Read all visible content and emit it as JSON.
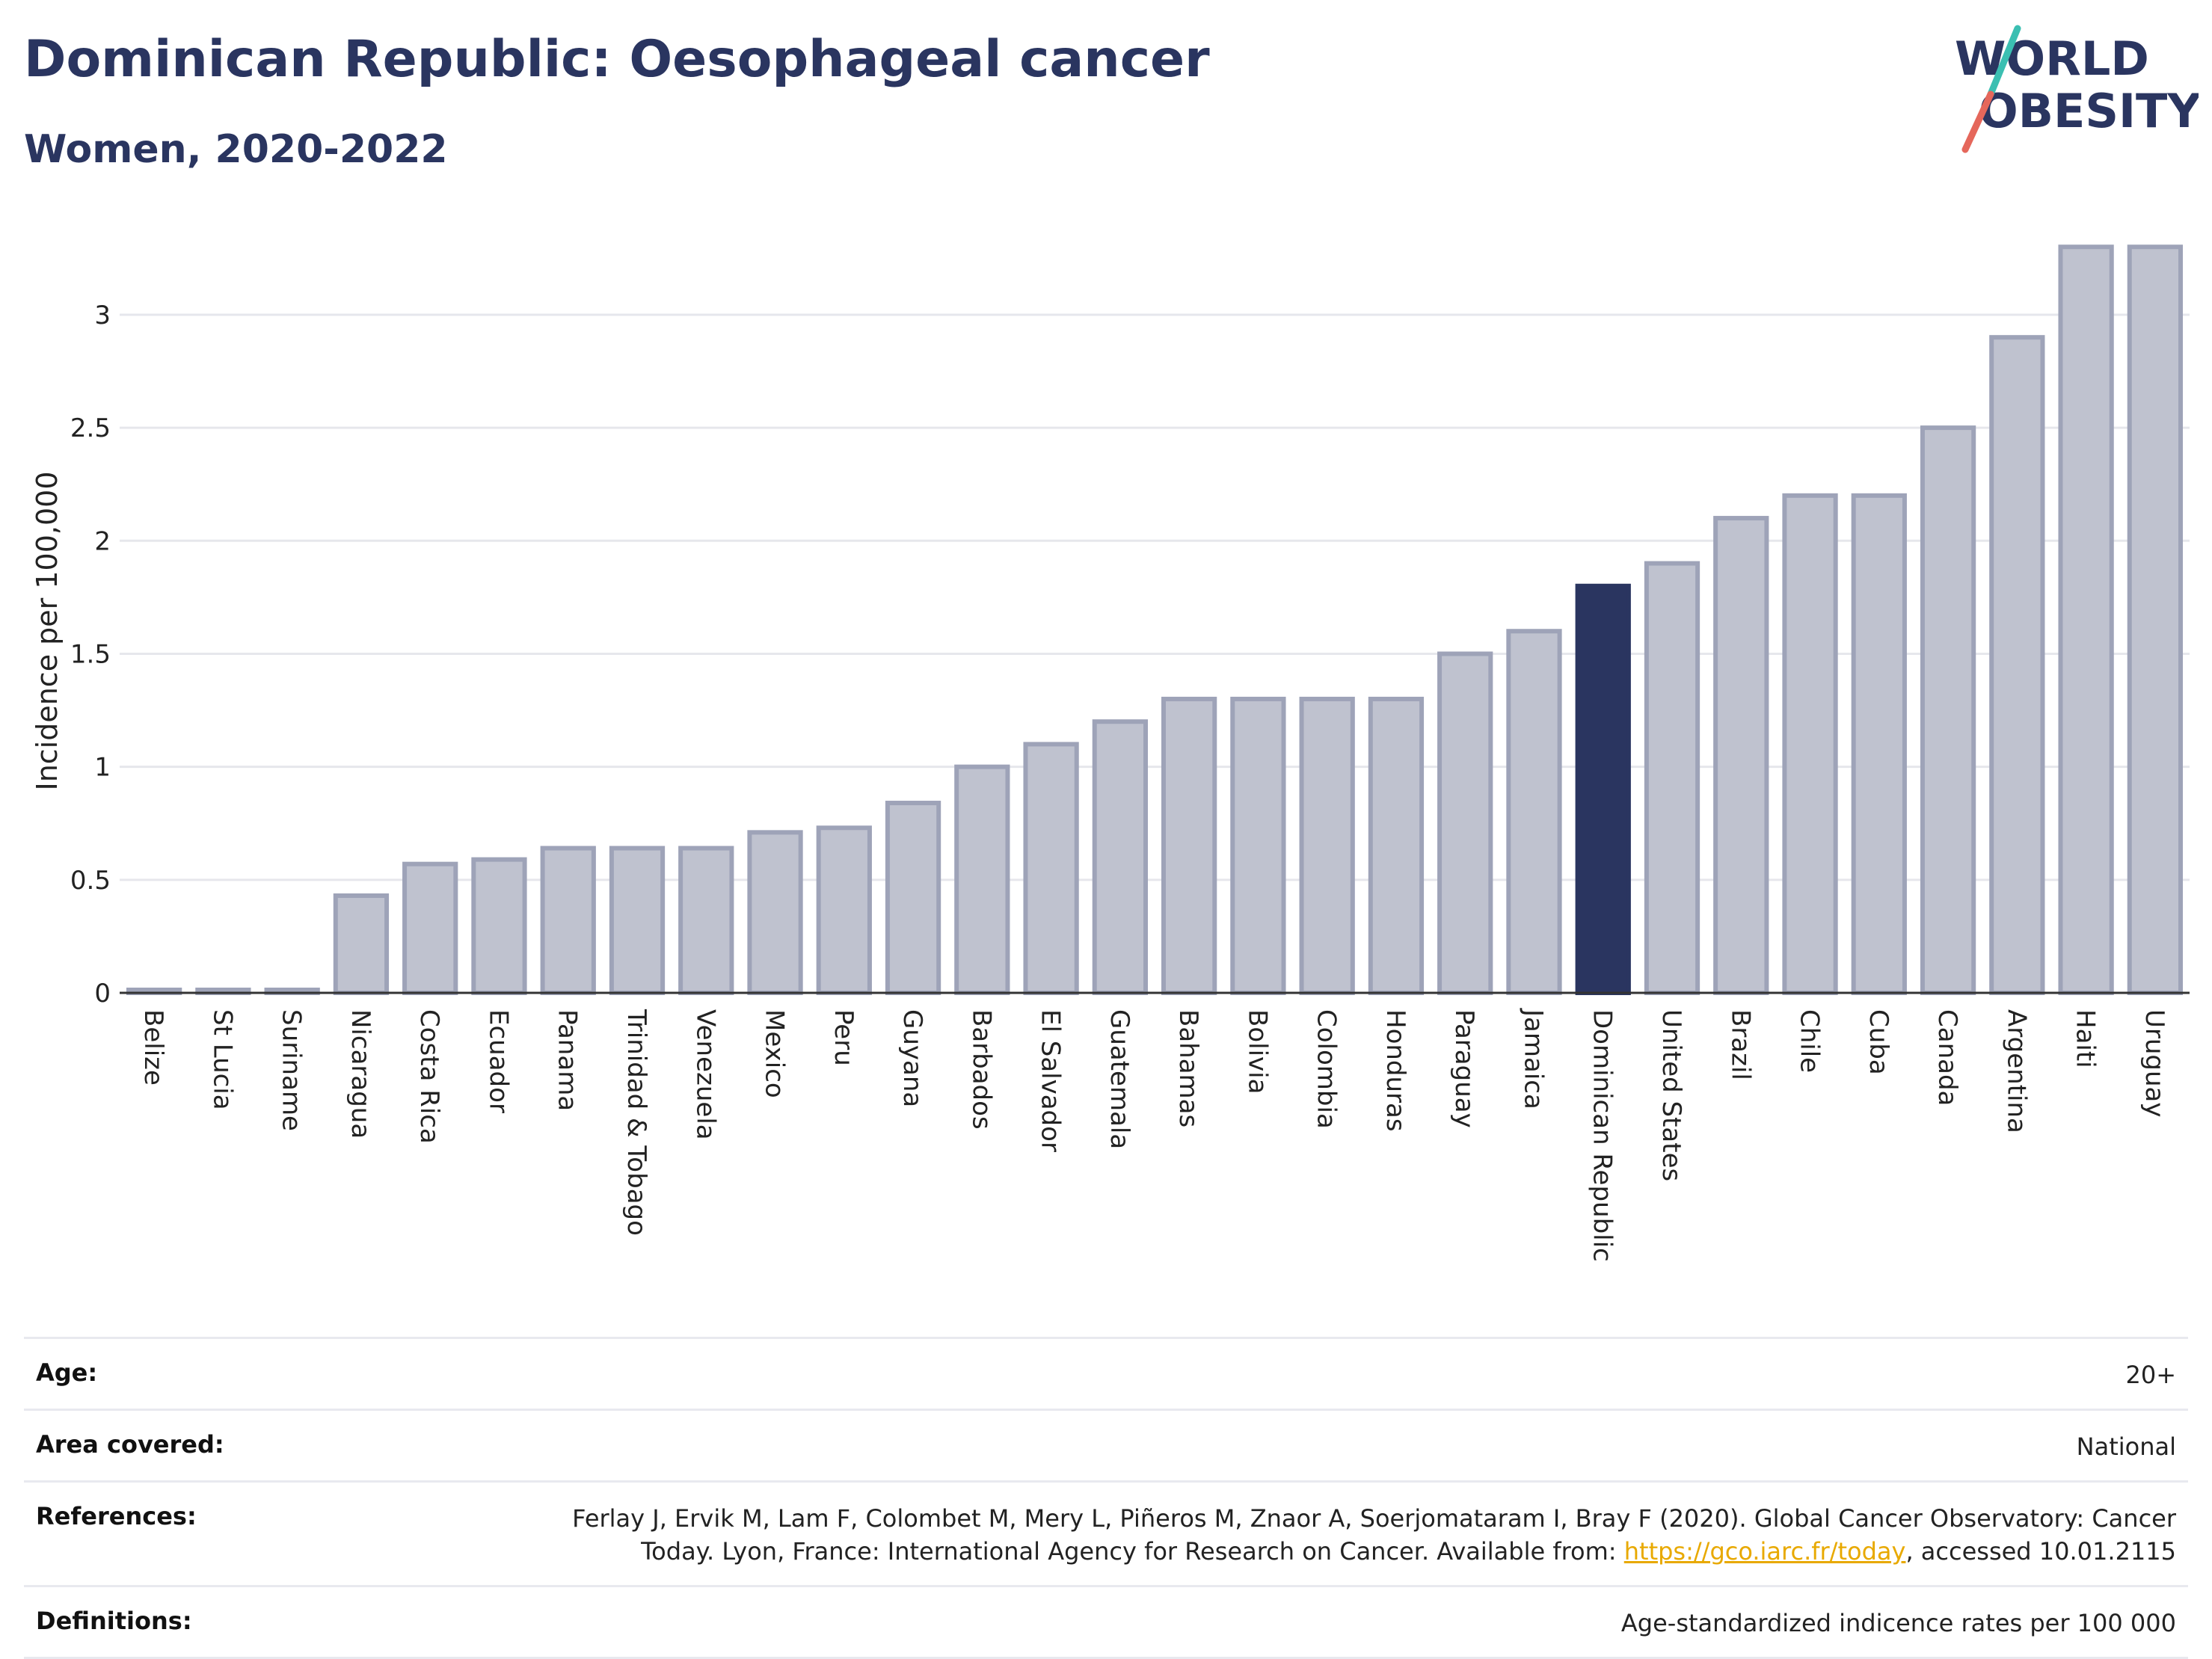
{
  "title": "Dominican Republic: Oesophageal cancer",
  "subtitle": "Women, 2020-2022",
  "logo": {
    "line1": "WORLD",
    "line2": "OBESITY",
    "accent_colors": [
      "#3bbfb2",
      "#e5675b"
    ]
  },
  "colors": {
    "highlight": "#2a3560",
    "bar": "#bfc2cf",
    "bar_border": "#9ea3b8",
    "axis": "#333333",
    "grid": "#e6e7ec"
  },
  "chart_data": {
    "type": "bar",
    "ylabel": "Incidence per 100,000",
    "xlabel": "",
    "ylim": [
      0,
      3.4
    ],
    "yticks": [
      0,
      0.5,
      1,
      1.5,
      2,
      2.5,
      3
    ],
    "ytick_labels": [
      "0",
      "0.5",
      "1",
      "1.5",
      "2",
      "2.5",
      "3"
    ],
    "grid": true,
    "highlight": "Dominican Republic",
    "categories": [
      "Belize",
      "St Lucia",
      "Suriname",
      "Nicaragua",
      "Costa Rica",
      "Ecuador",
      "Panama",
      "Trinidad & Tobago",
      "Venezuela",
      "Mexico",
      "Peru",
      "Guyana",
      "Barbados",
      "El Salvador",
      "Guatemala",
      "Bahamas",
      "Bolivia",
      "Colombia",
      "Honduras",
      "Paraguay",
      "Jamaica",
      "Dominican Republic",
      "United States",
      "Brazil",
      "Chile",
      "Cuba",
      "Canada",
      "Argentina",
      "Haiti",
      "Uruguay"
    ],
    "values": [
      0,
      0,
      0,
      0.43,
      0.57,
      0.59,
      0.64,
      0.64,
      0.64,
      0.71,
      0.73,
      0.84,
      1.0,
      1.1,
      1.2,
      1.3,
      1.3,
      1.3,
      1.3,
      1.5,
      1.6,
      1.8,
      1.9,
      2.1,
      2.2,
      2.2,
      2.5,
      2.9,
      3.3,
      3.3
    ]
  },
  "metadata": [
    {
      "label": "Age:",
      "value": "20+"
    },
    {
      "label": "Area covered:",
      "value": "National"
    },
    {
      "label": "References:",
      "value_before_link": "Ferlay J, Ervik M, Lam F, Colombet M, Mery L, Piñeros M, Znaor A, Soerjomataram I, Bray F (2020). Global Cancer Observatory: Cancer Today. Lyon, France: International Agency for Research on Cancer. Available from: ",
      "link_text": "https://gco.iarc.fr/today",
      "value_after_link": ", accessed 10.01.2115"
    },
    {
      "label": "Definitions:",
      "value": "Age-standardized indicence rates per 100 000"
    }
  ]
}
